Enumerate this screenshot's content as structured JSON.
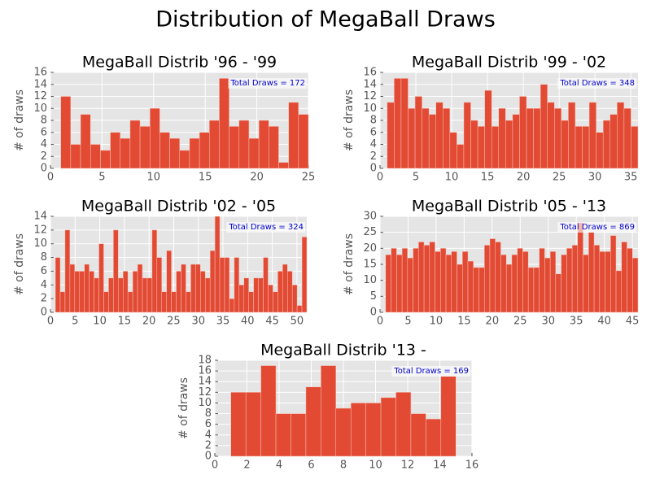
{
  "title": "Distribution of MegaBall Draws",
  "chart_data": [
    {
      "type": "histogram",
      "title": "MegaBall Distrib '96 - '99",
      "y_label": "# of draws",
      "annotation": "Total Draws = 172",
      "color": "#e24a33",
      "grid": true,
      "bins": [
        1,
        1.96,
        2.92,
        3.88,
        4.84,
        5.8,
        6.76,
        7.72,
        8.68,
        9.64,
        10.6,
        11.56,
        12.52,
        13.48,
        14.44,
        15.4,
        16.36,
        17.32,
        18.28,
        19.24,
        20.2,
        21.16,
        22.12,
        23.08,
        24.04,
        25
      ],
      "values": [
        12,
        4,
        9,
        4,
        3,
        6,
        5,
        8,
        7,
        10,
        6,
        5,
        3,
        5,
        6,
        8,
        15,
        7,
        8,
        5,
        8,
        7,
        1,
        11,
        9
      ],
      "xlim": [
        0,
        25
      ],
      "xticks": [
        0,
        5,
        10,
        15,
        20,
        25
      ],
      "ylim": [
        0,
        16
      ],
      "yticks": [
        0,
        2,
        4,
        6,
        8,
        10,
        12,
        14,
        16
      ]
    },
    {
      "type": "histogram",
      "title": "MegaBall Distrib '99 - '02",
      "y_label": "# of draws",
      "annotation": "Total Draws = 348",
      "color": "#e24a33",
      "grid": true,
      "bins": [
        1,
        1.972,
        2.944,
        3.917,
        4.889,
        5.861,
        6.833,
        7.806,
        8.778,
        9.75,
        10.722,
        11.694,
        12.667,
        13.639,
        14.611,
        15.583,
        16.556,
        17.528,
        18.5,
        19.472,
        20.444,
        21.417,
        22.389,
        23.361,
        24.333,
        25.306,
        26.278,
        27.25,
        28.222,
        29.194,
        30.167,
        31.139,
        32.111,
        33.083,
        34.056,
        35.028,
        36
      ],
      "values": [
        11,
        15,
        15,
        10,
        12,
        10,
        9,
        11,
        10,
        6,
        4,
        11,
        8,
        7,
        13,
        7,
        10,
        8,
        9,
        12,
        10,
        10,
        14,
        11,
        10,
        8,
        11,
        7,
        7,
        11,
        6,
        8,
        9,
        11,
        10,
        7
      ],
      "xlim": [
        0,
        36
      ],
      "xticks": [
        0,
        5,
        10,
        15,
        20,
        25,
        30,
        35
      ],
      "ylim": [
        0,
        16
      ],
      "yticks": [
        0,
        2,
        4,
        6,
        8,
        10,
        12,
        14,
        16
      ]
    },
    {
      "type": "histogram",
      "title": "MegaBall Distrib '02 - '05",
      "y_label": "# of draws",
      "annotation": "Total Draws = 324",
      "color": "#e24a33",
      "grid": true,
      "bins": [
        1,
        1.981,
        2.962,
        3.942,
        4.923,
        5.904,
        6.885,
        7.865,
        8.846,
        9.827,
        10.808,
        11.788,
        12.769,
        13.75,
        14.731,
        15.712,
        16.692,
        17.673,
        18.654,
        19.635,
        20.615,
        21.596,
        22.577,
        23.558,
        24.538,
        25.519,
        26.5,
        27.481,
        28.462,
        29.442,
        30.423,
        31.404,
        32.385,
        33.365,
        34.346,
        35.327,
        36.308,
        37.288,
        38.269,
        39.25,
        40.231,
        41.212,
        42.192,
        43.173,
        44.154,
        45.135,
        46.115,
        47.096,
        48.077,
        49.058,
        50.038,
        51.019,
        52
      ],
      "values": [
        8,
        3,
        12,
        7,
        6,
        6,
        7,
        6,
        5,
        10,
        3,
        5,
        12,
        5,
        6,
        3,
        6,
        7,
        5,
        5,
        12,
        8,
        3,
        9,
        3,
        6,
        7,
        3,
        7,
        7,
        6,
        5,
        9,
        14,
        8,
        8,
        2,
        8,
        4,
        5,
        3,
        5,
        5,
        8,
        4,
        3,
        6,
        7,
        6,
        4,
        1,
        11
      ],
      "xlim": [
        0,
        52
      ],
      "xticks": [
        0,
        5,
        10,
        15,
        20,
        25,
        30,
        35,
        40,
        45,
        50
      ],
      "ylim": [
        0,
        14
      ],
      "yticks": [
        0,
        2,
        4,
        6,
        8,
        10,
        12,
        14
      ]
    },
    {
      "type": "histogram",
      "title": "MegaBall Distrib '05 - '13",
      "y_label": "# of draws",
      "annotation": "Total Draws = 869",
      "color": "#e24a33",
      "grid": true,
      "bins": [
        1,
        1.978,
        2.957,
        3.935,
        4.913,
        5.891,
        6.87,
        7.848,
        8.826,
        9.804,
        10.783,
        11.761,
        12.739,
        13.717,
        14.696,
        15.674,
        16.652,
        17.63,
        18.609,
        19.587,
        20.565,
        21.543,
        22.522,
        23.5,
        24.478,
        25.457,
        26.435,
        27.413,
        28.391,
        29.37,
        30.348,
        31.326,
        32.304,
        33.283,
        34.261,
        35.239,
        36.217,
        37.196,
        38.174,
        39.152,
        40.13,
        41.109,
        42.087,
        43.065,
        44.043,
        45.022,
        46
      ],
      "values": [
        18,
        20,
        18,
        20,
        17,
        20,
        22,
        21,
        22,
        19,
        20,
        18,
        19,
        15,
        19,
        16,
        14,
        14,
        21,
        23,
        22,
        18,
        15,
        18,
        20,
        19,
        14,
        14,
        20,
        17,
        19,
        12,
        18,
        20,
        21,
        28,
        18,
        25,
        21,
        19,
        19,
        24,
        13,
        22,
        20,
        17
      ],
      "xlim": [
        0,
        46
      ],
      "xticks": [
        0,
        5,
        10,
        15,
        20,
        25,
        30,
        35,
        40,
        45
      ],
      "ylim": [
        0,
        30
      ],
      "yticks": [
        0,
        5,
        10,
        15,
        20,
        25,
        30
      ]
    },
    {
      "type": "histogram",
      "title": "MegaBall Distrib '13 -",
      "y_label": "# of draws",
      "annotation": "Total Draws = 169",
      "color": "#e24a33",
      "grid": true,
      "bins": [
        1,
        1.933,
        2.867,
        3.8,
        4.733,
        5.667,
        6.6,
        7.533,
        8.467,
        9.4,
        10.333,
        11.267,
        12.2,
        13.133,
        14.067,
        15
      ],
      "values": [
        12,
        12,
        17,
        8,
        8,
        13,
        17,
        9,
        10,
        10,
        11,
        12,
        8,
        7,
        15
      ],
      "xlim": [
        0,
        16
      ],
      "xticks": [
        0,
        2,
        4,
        6,
        8,
        10,
        12,
        14,
        16
      ],
      "ylim": [
        0,
        18
      ],
      "yticks": [
        0,
        2,
        4,
        6,
        8,
        10,
        12,
        14,
        16,
        18
      ]
    }
  ]
}
